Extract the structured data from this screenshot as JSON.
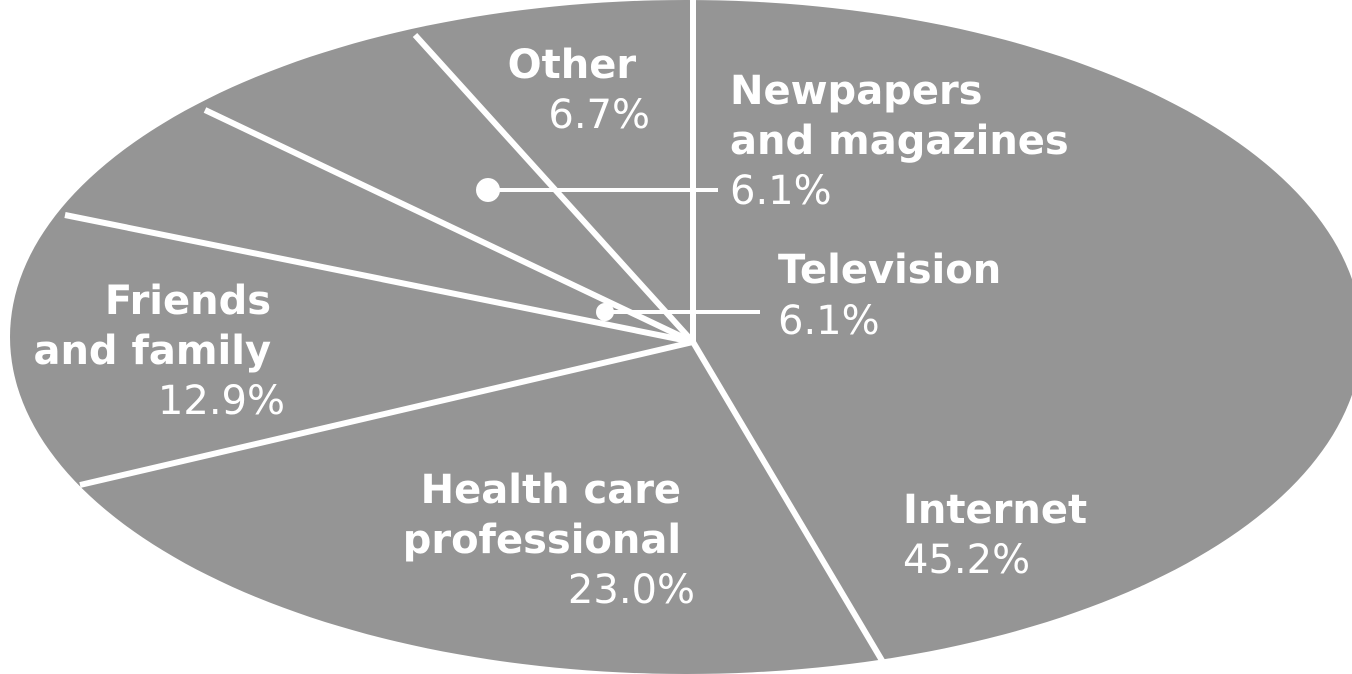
{
  "chart_data": {
    "type": "pie",
    "title": "",
    "slices": [
      {
        "label": "Internet",
        "pct_label": "45.2%",
        "value": 45.2
      },
      {
        "label": "Health care professional",
        "pct_label": "23.0%",
        "value": 23.0
      },
      {
        "label": "Friends and family",
        "pct_label": "12.9%",
        "value": 12.9
      },
      {
        "label": "Television",
        "pct_label": "6.1%",
        "value": 6.1
      },
      {
        "label": "Newpapers and magazines",
        "pct_label": "6.1%",
        "value": 6.1
      },
      {
        "label": "Other",
        "pct_label": "6.7%",
        "value": 6.7
      }
    ],
    "label_lines": {
      "internet": [
        "Internet",
        "45.2%"
      ],
      "health": [
        "Health care",
        "professional",
        "23.0%"
      ],
      "friends": [
        "Friends",
        "and family",
        "12.9%"
      ],
      "television": [
        "Television",
        "6.1%"
      ],
      "newspapers": [
        "Newpapers",
        "and magazines",
        "6.1%"
      ],
      "other": [
        "Other",
        "6.7%"
      ]
    },
    "colors": {
      "slice": "#959595",
      "divider": "#ffffff",
      "label": "#ffffff"
    },
    "legend": "none"
  }
}
